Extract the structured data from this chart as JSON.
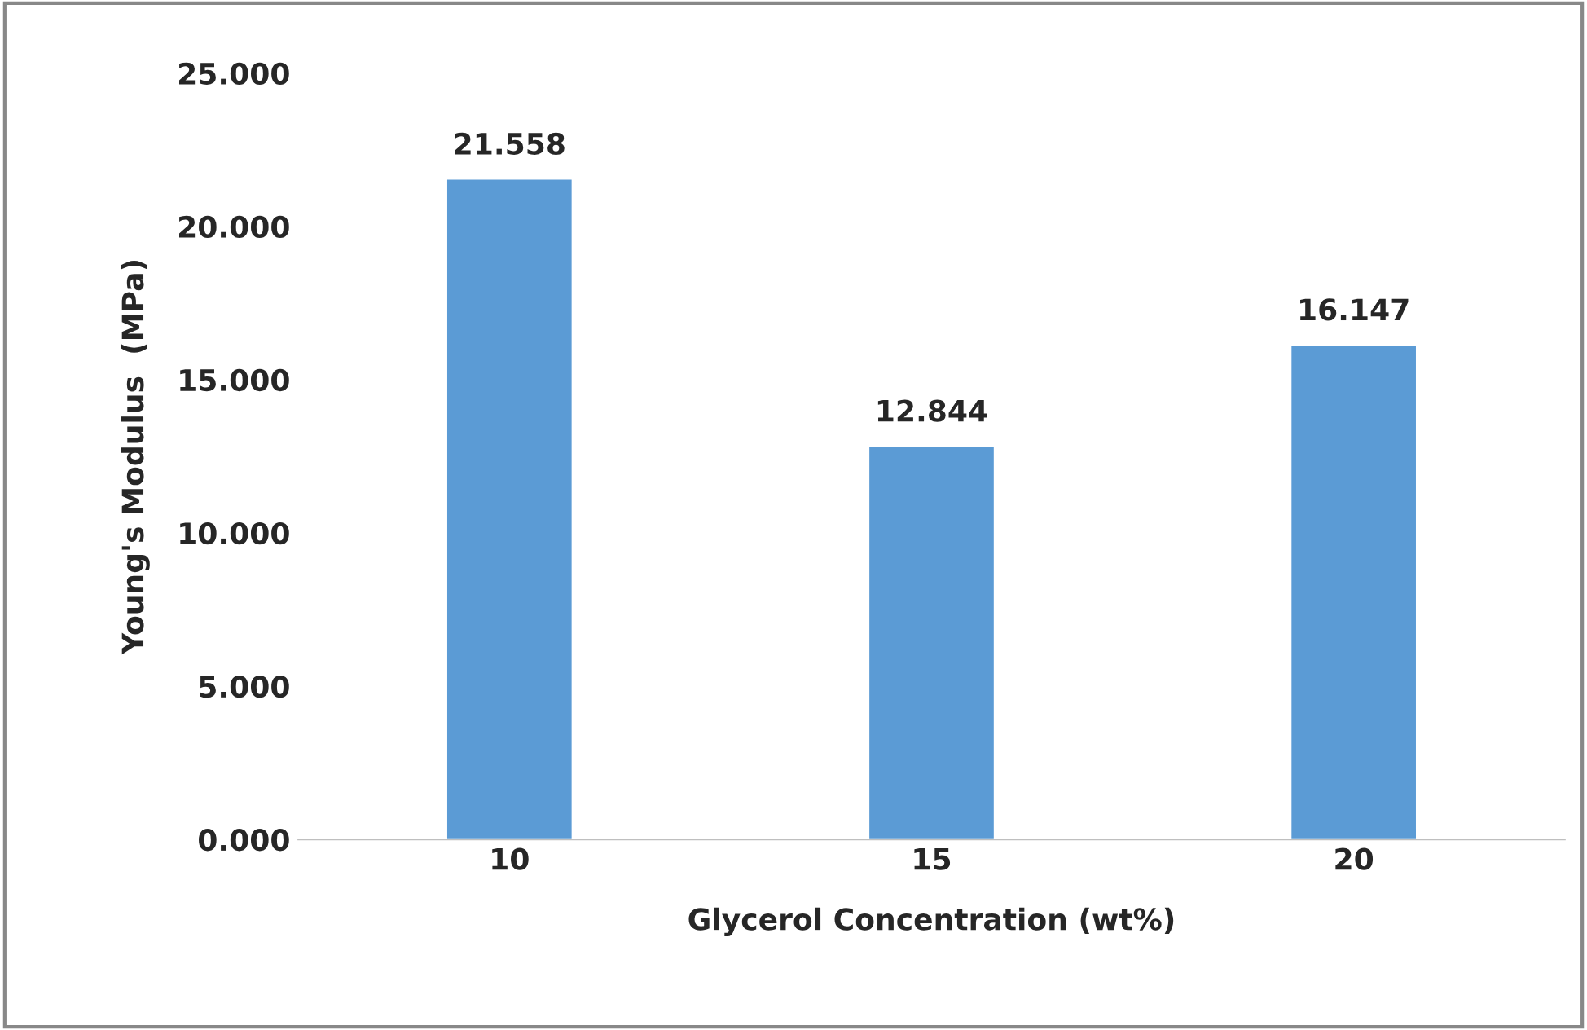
{
  "chart_data": {
    "type": "bar",
    "xlabel": "Glycerol Concentration (wt%)",
    "ylabel": "Young's Modulus  (MPa)",
    "categories": [
      "10",
      "15",
      "20"
    ],
    "values": [
      21.558,
      12.844,
      16.147
    ],
    "color": "#5b9bd5",
    "ylim": [
      0,
      25
    ],
    "yticks": [
      {
        "value": 0,
        "label": "0.000"
      },
      {
        "value": 5,
        "label": "5.000"
      },
      {
        "value": 10,
        "label": "10.000"
      },
      {
        "value": 15,
        "label": "15.000"
      },
      {
        "value": 20,
        "label": "20.000"
      },
      {
        "value": 25,
        "label": "25.000"
      }
    ],
    "data_labels": true,
    "grid": false
  }
}
